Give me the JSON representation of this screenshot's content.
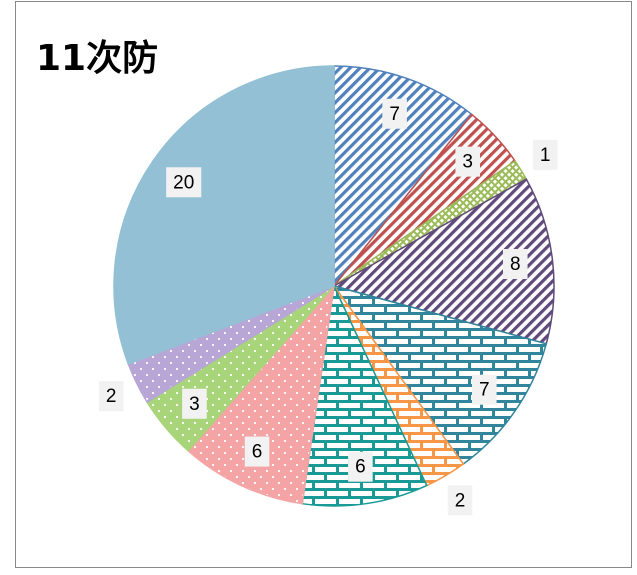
{
  "chart_data": {
    "type": "pie",
    "title": "11次防",
    "values": [
      7,
      3,
      1,
      8,
      7,
      2,
      6,
      6,
      3,
      2,
      20
    ],
    "colors": [
      "#4f81bd",
      "#c0504d",
      "#9bbb59",
      "#604a7b",
      "#31859c",
      "#f79646",
      "#1a9a96",
      "#f4a4a4",
      "#a8d47a",
      "#b7a6d6",
      "#93c0d4"
    ],
    "fill_styles": [
      "stripes",
      "stripes",
      "crosshatch",
      "stripes",
      "brick",
      "brick",
      "brick",
      "dots",
      "dots",
      "dots",
      "solid"
    ]
  }
}
